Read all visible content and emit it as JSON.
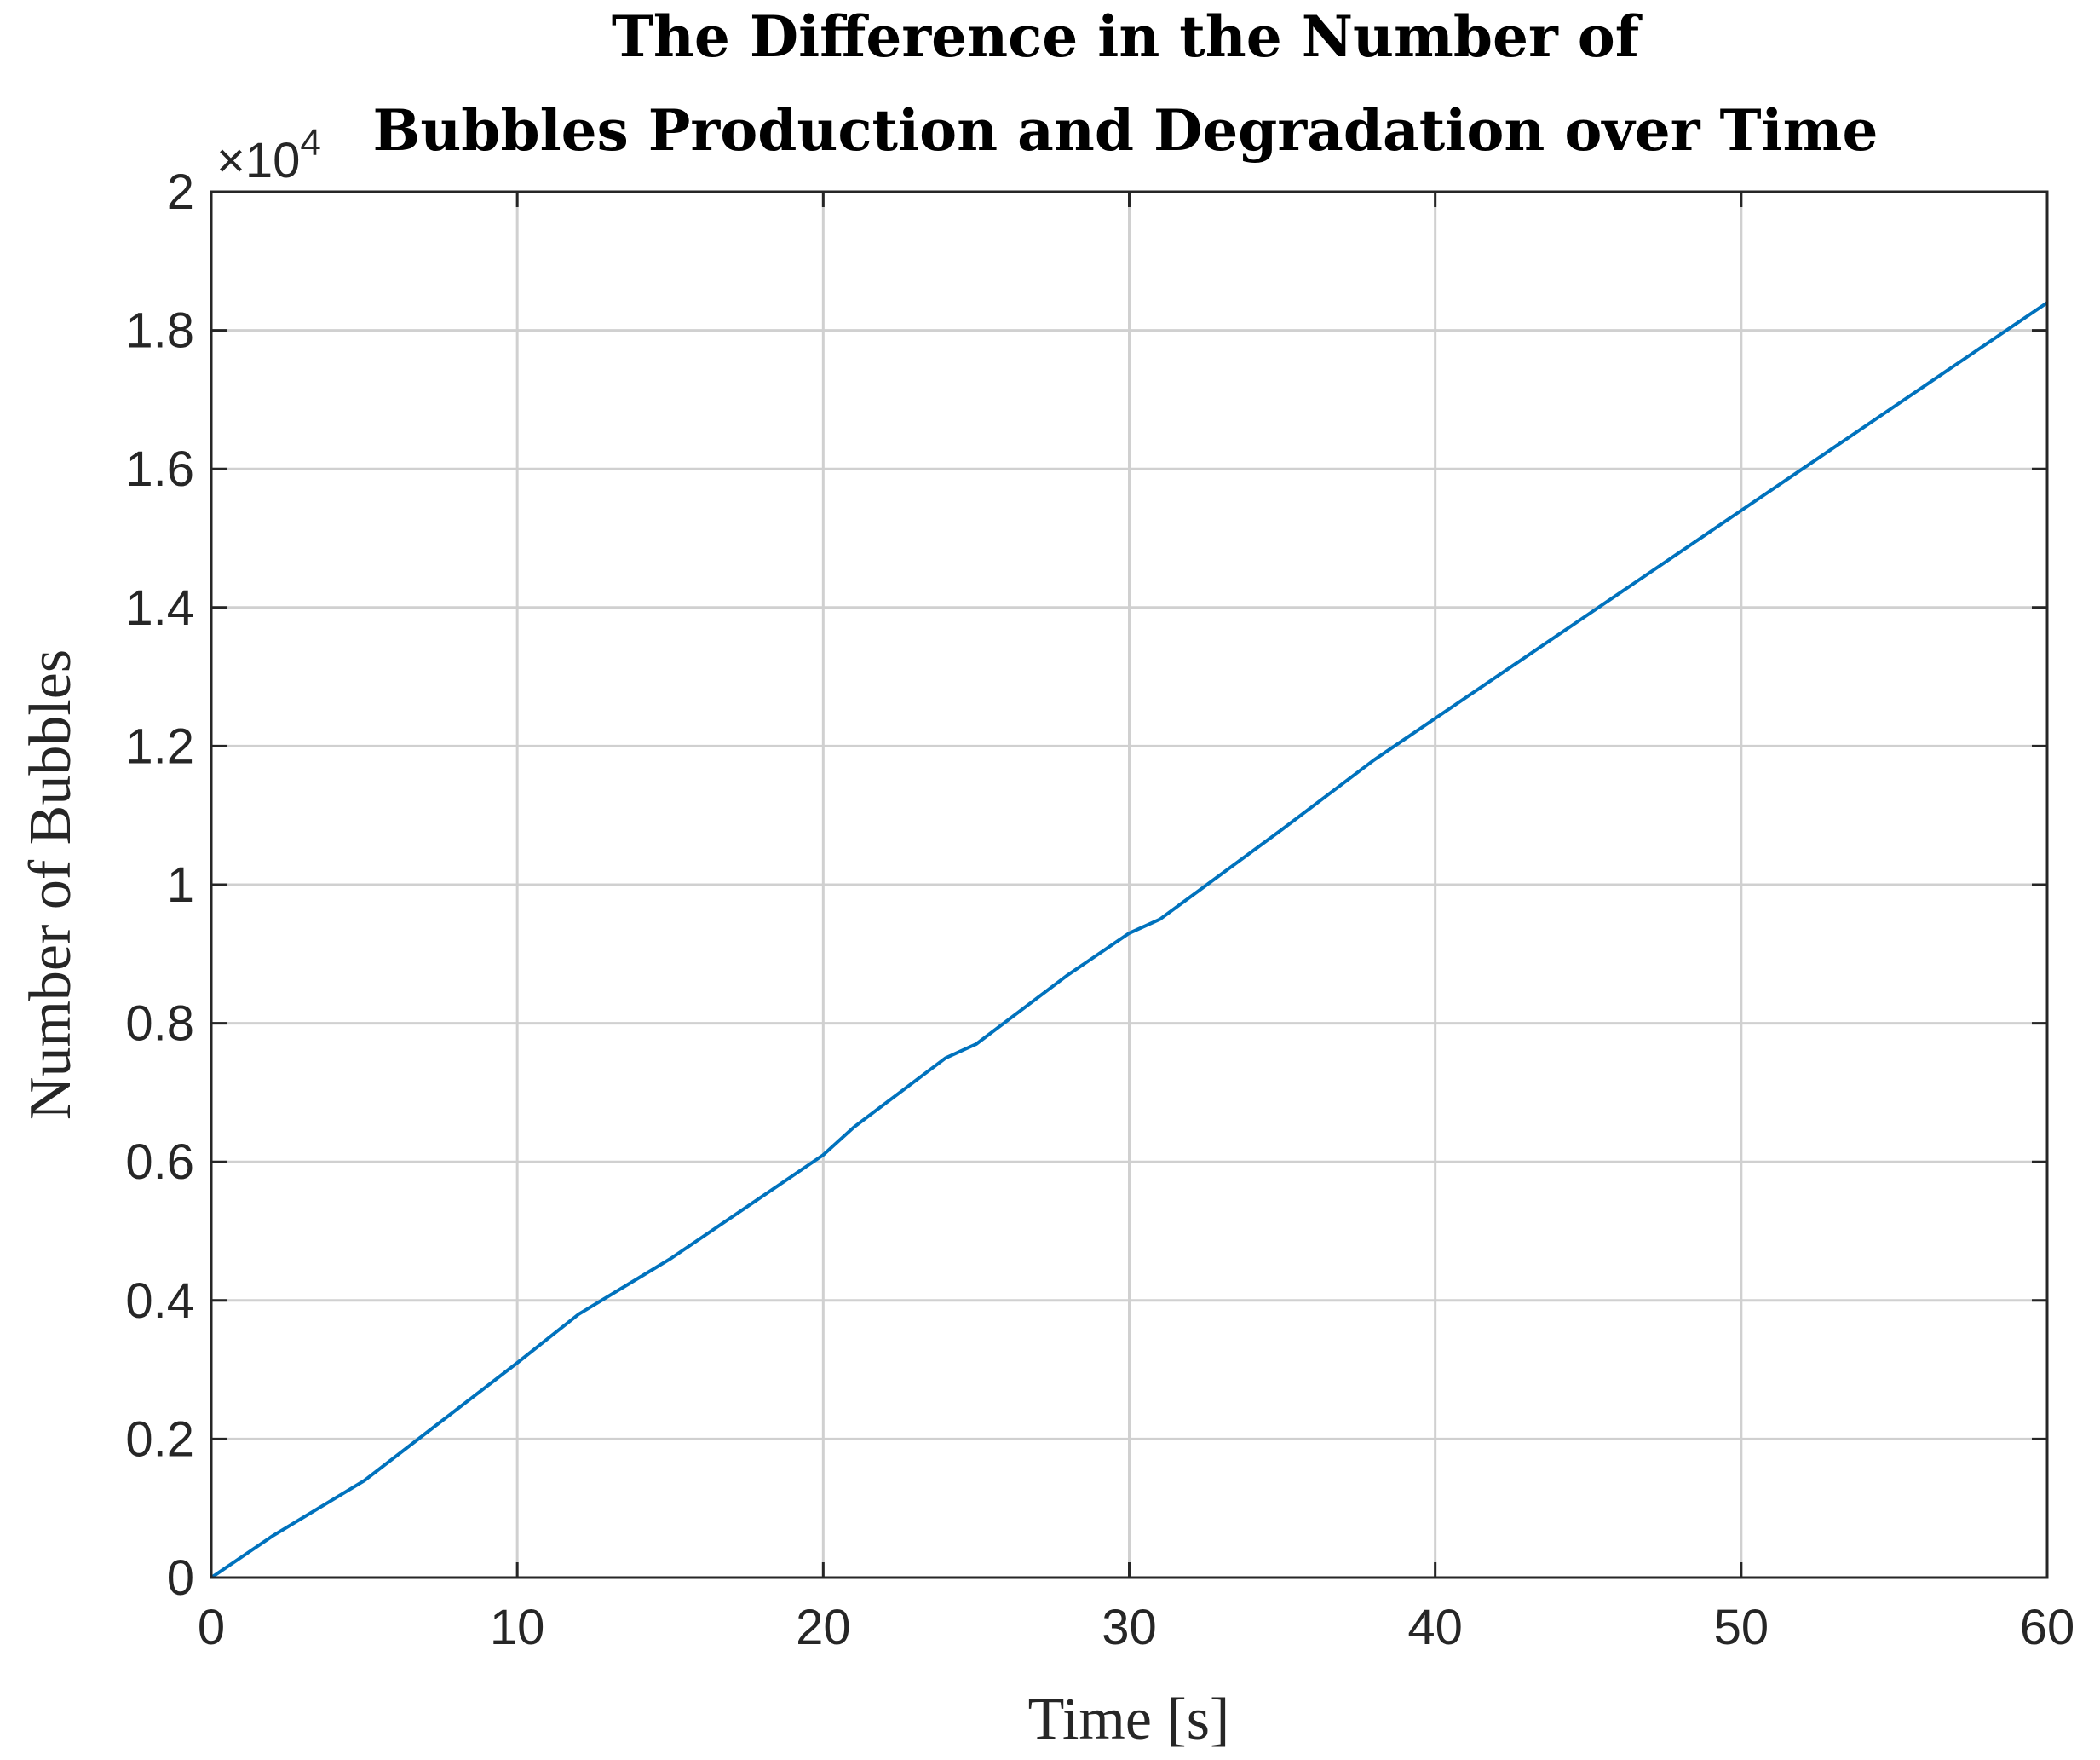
{
  "chart_data": {
    "type": "line",
    "title_lines": [
      "The Difference in the Number of",
      "Bubbles Production and Degradation over Time"
    ],
    "xlabel": "Time [s]",
    "ylabel": "Number of Bubbles",
    "y_exponent_label": "×10",
    "y_exponent_power": "4",
    "xlim": [
      0,
      60
    ],
    "ylim": [
      0,
      20000
    ],
    "x_ticks": [
      0,
      10,
      20,
      30,
      40,
      50,
      60
    ],
    "y_ticks": [
      0,
      2000,
      4000,
      6000,
      8000,
      10000,
      12000,
      14000,
      16000,
      18000,
      20000
    ],
    "x_tick_labels": [
      "0",
      "10",
      "20",
      "30",
      "40",
      "50",
      "60"
    ],
    "y_tick_labels": [
      "0",
      "0.2",
      "0.4",
      "0.6",
      "0.8",
      "1",
      "1.2",
      "1.4",
      "1.6",
      "1.8",
      "2"
    ],
    "grid": true,
    "series": [
      {
        "color": "#0072BD",
        "x": [
          0,
          1,
          2,
          5,
          10,
          12,
          15,
          20,
          21,
          24,
          25,
          28,
          30,
          31,
          35,
          38,
          40,
          45,
          50,
          52,
          55,
          60
        ],
        "y": [
          0,
          300,
          600,
          1400,
          3100,
          3800,
          4600,
          6100,
          6500,
          7500,
          7700,
          8700,
          9300,
          9500,
          10800,
          11800,
          12400,
          13900,
          15400,
          16000,
          16900,
          18400
        ]
      }
    ]
  }
}
